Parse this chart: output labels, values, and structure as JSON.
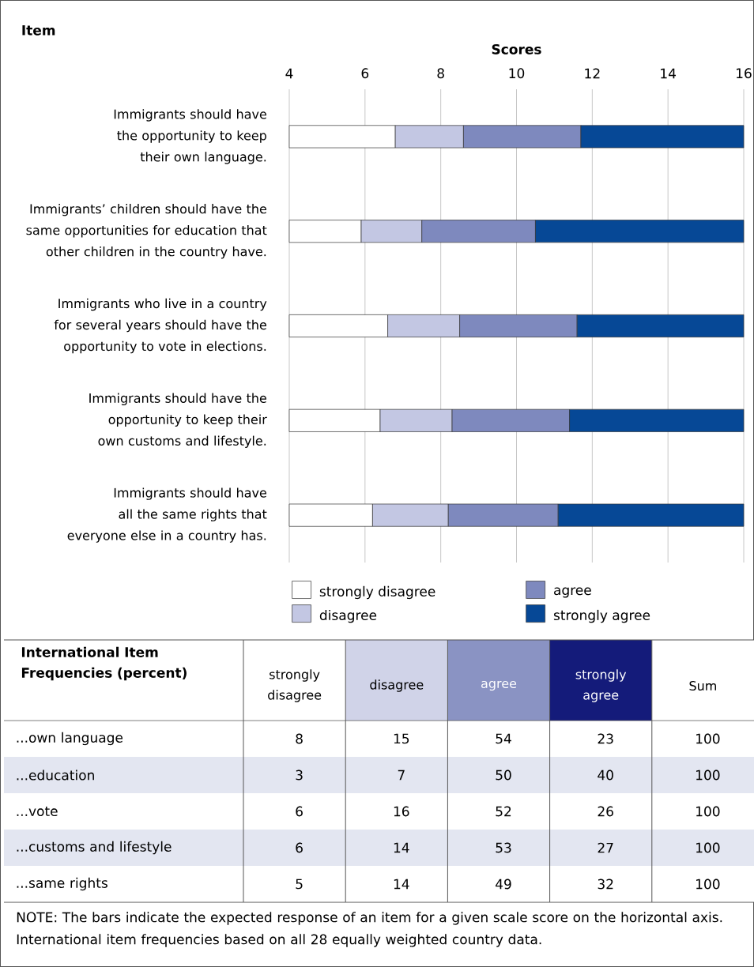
{
  "chart_data": [
    {
      "type": "bar",
      "orientation": "horizontal",
      "xlabel": "Scores",
      "ylabel": "Item",
      "categories": [
        "Immigrants should have the opportunity to keep their own language.",
        "Immigrants’ children should have the same opportunities for education that other children in the country have.",
        "Immigrants who live in a country for several years should have the opportunity to vote in elections.",
        "Immigrants should have the opportunity to keep their own customs and lifestyle.",
        "Immigrants should have all the same rights that everyone else in a country has."
      ],
      "series": [
        {
          "name": "strongly disagree",
          "color": "#ffffff",
          "base": [
            4,
            4,
            4,
            4,
            4
          ],
          "values": [
            2.8,
            1.9,
            2.6,
            2.4,
            2.2
          ]
        },
        {
          "name": "disagree",
          "color": "#c3c7e3",
          "base": [
            6.8,
            5.9,
            6.6,
            6.4,
            6.2
          ],
          "values": [
            1.8,
            1.6,
            1.9,
            1.9,
            2.0
          ]
        },
        {
          "name": "agree",
          "color": "#7e89be",
          "base": [
            8.6,
            7.5,
            8.5,
            8.3,
            8.2
          ],
          "values": [
            3.1,
            3.0,
            3.1,
            3.1,
            2.9
          ]
        },
        {
          "name": "strongly agree",
          "color": "#064896",
          "base": [
            11.7,
            10.5,
            11.6,
            11.4,
            11.1
          ],
          "values": [
            4.3,
            5.5,
            4.4,
            4.6,
            4.9
          ]
        }
      ],
      "xlim": [
        4,
        16
      ],
      "xticks": [
        4,
        6,
        8,
        10,
        12,
        14,
        16
      ],
      "grid": "x",
      "legend": "bottom"
    },
    {
      "type": "heatmap",
      "title": "International Item Frequencies (percent)",
      "categories": [
        "strongly disagree",
        "disagree",
        "agree",
        "strongly agree",
        "Sum"
      ],
      "colors": [
        "#ffffff",
        "#d0d3e8",
        "#8a93c3",
        "#141b7a",
        "#ffffff"
      ],
      "y_categories": [
        "...own language",
        "...education",
        "...vote",
        "...customs and lifestyle",
        "...same rights"
      ],
      "cells": [
        [
          8,
          15,
          54,
          23,
          100
        ],
        [
          3,
          7,
          50,
          40,
          100
        ],
        [
          6,
          16,
          52,
          26,
          100
        ],
        [
          6,
          14,
          53,
          27,
          100
        ],
        [
          5,
          14,
          49,
          32,
          100
        ]
      ],
      "data_labels": true,
      "annotations": [
        "NOTE: The bars indicate the expected response of an item for a given scale score on the horizontal axis. International item frequencies based on all 28 equally weighted country data."
      ]
    }
  ]
}
